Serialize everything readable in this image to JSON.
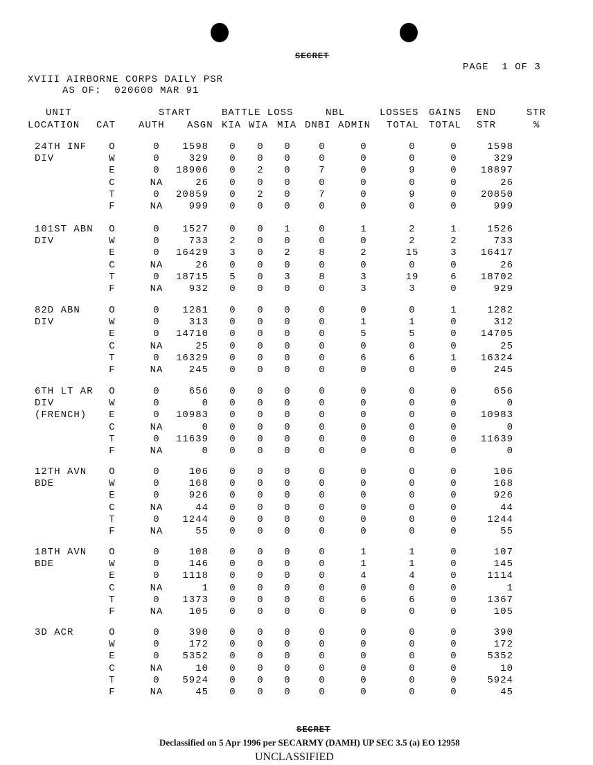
{
  "classification_top": "SECRET",
  "page_label": "PAGE  1 OF 3",
  "title": "XVIII AIRBORNE CORPS DAILY PSR",
  "as_of": "AS OF:  020600 MAR 91",
  "headers": {
    "unit": "UNIT",
    "location": "LOCATION",
    "cat": "CAT",
    "start": "START",
    "auth": "AUTH",
    "asgn": "ASGN",
    "battle_loss": "BATTLE LOSS",
    "kia": "KIA",
    "wia": "WIA",
    "mia": "MIA",
    "nbl": "NBL",
    "dnbi": "DNBI",
    "admin": "ADMIN",
    "losses": "LOSSES",
    "losses_total": "TOTAL",
    "gains": "GAINS",
    "gains_total": "TOTAL",
    "end": "END",
    "end_str": "STR",
    "str": "STR",
    "str_pct": "%"
  },
  "units": [
    {
      "name": [
        "24TH INF",
        "DIV"
      ],
      "rows": [
        [
          "O",
          "0",
          "1598",
          "0",
          "0",
          "0",
          "0",
          "0",
          "0",
          "0",
          "1598"
        ],
        [
          "W",
          "0",
          "329",
          "0",
          "0",
          "0",
          "0",
          "0",
          "0",
          "0",
          "329"
        ],
        [
          "E",
          "0",
          "18906",
          "0",
          "2",
          "0",
          "7",
          "0",
          "9",
          "0",
          "18897"
        ],
        [
          "C",
          "NA",
          "26",
          "0",
          "0",
          "0",
          "0",
          "0",
          "0",
          "0",
          "26"
        ],
        [
          "T",
          "0",
          "20859",
          "0",
          "2",
          "0",
          "7",
          "0",
          "9",
          "0",
          "20850"
        ],
        [
          "F",
          "NA",
          "999",
          "0",
          "0",
          "0",
          "0",
          "0",
          "0",
          "0",
          "999"
        ]
      ]
    },
    {
      "name": [
        "101ST ABN",
        "DIV"
      ],
      "rows": [
        [
          "O",
          "0",
          "1527",
          "0",
          "0",
          "1",
          "0",
          "1",
          "2",
          "1",
          "1526"
        ],
        [
          "W",
          "0",
          "733",
          "2",
          "0",
          "0",
          "0",
          "0",
          "2",
          "2",
          "733"
        ],
        [
          "E",
          "0",
          "16429",
          "3",
          "0",
          "2",
          "8",
          "2",
          "15",
          "3",
          "16417"
        ],
        [
          "C",
          "NA",
          "26",
          "0",
          "0",
          "0",
          "0",
          "0",
          "0",
          "0",
          "26"
        ],
        [
          "T",
          "0",
          "18715",
          "5",
          "0",
          "3",
          "8",
          "3",
          "19",
          "6",
          "18702"
        ],
        [
          "F",
          "NA",
          "932",
          "0",
          "0",
          "0",
          "0",
          "3",
          "3",
          "0",
          "929"
        ]
      ]
    },
    {
      "name": [
        "82D ABN",
        "DIV"
      ],
      "rows": [
        [
          "O",
          "0",
          "1281",
          "0",
          "0",
          "0",
          "0",
          "0",
          "0",
          "1",
          "1282"
        ],
        [
          "W",
          "0",
          "313",
          "0",
          "0",
          "0",
          "0",
          "1",
          "1",
          "0",
          "312"
        ],
        [
          "E",
          "0",
          "14710",
          "0",
          "0",
          "0",
          "0",
          "5",
          "5",
          "0",
          "14705"
        ],
        [
          "C",
          "NA",
          "25",
          "0",
          "0",
          "0",
          "0",
          "0",
          "0",
          "0",
          "25"
        ],
        [
          "T",
          "0",
          "16329",
          "0",
          "0",
          "0",
          "0",
          "6",
          "6",
          "1",
          "16324"
        ],
        [
          "F",
          "NA",
          "245",
          "0",
          "0",
          "0",
          "0",
          "0",
          "0",
          "0",
          "245"
        ]
      ]
    },
    {
      "name": [
        "6TH LT AR",
        "DIV",
        "(FRENCH)"
      ],
      "rows": [
        [
          "O",
          "0",
          "656",
          "0",
          "0",
          "0",
          "0",
          "0",
          "0",
          "0",
          "656"
        ],
        [
          "W",
          "0",
          "0",
          "0",
          "0",
          "0",
          "0",
          "0",
          "0",
          "0",
          "0"
        ],
        [
          "E",
          "0",
          "10983",
          "0",
          "0",
          "0",
          "0",
          "0",
          "0",
          "0",
          "10983"
        ],
        [
          "C",
          "NA",
          "0",
          "0",
          "0",
          "0",
          "0",
          "0",
          "0",
          "0",
          "0"
        ],
        [
          "T",
          "0",
          "11639",
          "0",
          "0",
          "0",
          "0",
          "0",
          "0",
          "0",
          "11639"
        ],
        [
          "F",
          "NA",
          "0",
          "0",
          "0",
          "0",
          "0",
          "0",
          "0",
          "0",
          "0"
        ]
      ]
    },
    {
      "name": [
        "12TH AVN",
        "BDE"
      ],
      "rows": [
        [
          "O",
          "0",
          "106",
          "0",
          "0",
          "0",
          "0",
          "0",
          "0",
          "0",
          "106"
        ],
        [
          "W",
          "0",
          "168",
          "0",
          "0",
          "0",
          "0",
          "0",
          "0",
          "0",
          "168"
        ],
        [
          "E",
          "0",
          "926",
          "0",
          "0",
          "0",
          "0",
          "0",
          "0",
          "0",
          "926"
        ],
        [
          "C",
          "NA",
          "44",
          "0",
          "0",
          "0",
          "0",
          "0",
          "0",
          "0",
          "44"
        ],
        [
          "T",
          "0",
          "1244",
          "0",
          "0",
          "0",
          "0",
          "0",
          "0",
          "0",
          "1244"
        ],
        [
          "F",
          "NA",
          "55",
          "0",
          "0",
          "0",
          "0",
          "0",
          "0",
          "0",
          "55"
        ]
      ]
    },
    {
      "name": [
        "18TH AVN",
        "BDE"
      ],
      "rows": [
        [
          "O",
          "0",
          "108",
          "0",
          "0",
          "0",
          "0",
          "1",
          "1",
          "0",
          "107"
        ],
        [
          "W",
          "0",
          "146",
          "0",
          "0",
          "0",
          "0",
          "1",
          "1",
          "0",
          "145"
        ],
        [
          "E",
          "0",
          "1118",
          "0",
          "0",
          "0",
          "0",
          "4",
          "4",
          "0",
          "1114"
        ],
        [
          "C",
          "NA",
          "1",
          "0",
          "0",
          "0",
          "0",
          "0",
          "0",
          "0",
          "1"
        ],
        [
          "T",
          "0",
          "1373",
          "0",
          "0",
          "0",
          "0",
          "6",
          "6",
          "0",
          "1367"
        ],
        [
          "F",
          "NA",
          "105",
          "0",
          "0",
          "0",
          "0",
          "0",
          "0",
          "0",
          "105"
        ]
      ]
    },
    {
      "name": [
        "3D ACR"
      ],
      "rows": [
        [
          "O",
          "0",
          "390",
          "0",
          "0",
          "0",
          "0",
          "0",
          "0",
          "0",
          "390"
        ],
        [
          "W",
          "0",
          "172",
          "0",
          "0",
          "0",
          "0",
          "0",
          "0",
          "0",
          "172"
        ],
        [
          "E",
          "0",
          "5352",
          "0",
          "0",
          "0",
          "0",
          "0",
          "0",
          "0",
          "5352"
        ],
        [
          "C",
          "NA",
          "10",
          "0",
          "0",
          "0",
          "0",
          "0",
          "0",
          "0",
          "10"
        ],
        [
          "T",
          "0",
          "5924",
          "0",
          "0",
          "0",
          "0",
          "0",
          "0",
          "0",
          "5924"
        ],
        [
          "F",
          "NA",
          "45",
          "0",
          "0",
          "0",
          "0",
          "0",
          "0",
          "0",
          "45"
        ]
      ]
    }
  ],
  "classification_bottom": "SECRET",
  "declassified_note": "Declassified on 5 Apr 1996 per SECARMY (DAMH) UP SEC 3.5 (a) EO 12958",
  "unclassified": "UNCLASSIFIED"
}
